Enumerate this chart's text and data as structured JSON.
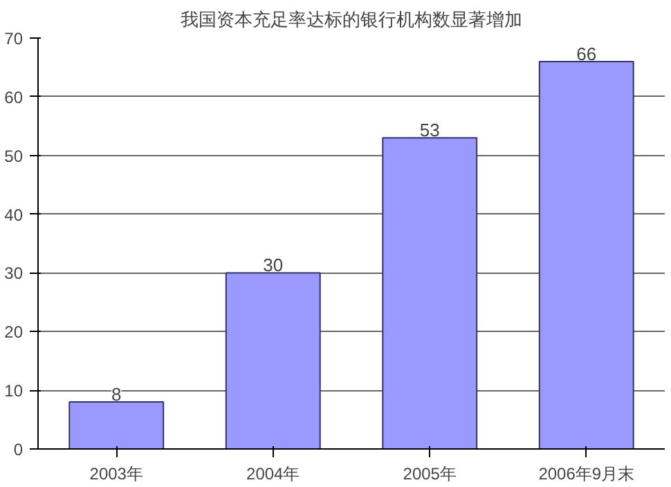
{
  "chart_data": {
    "type": "bar",
    "title": "我国资本充足率达标的银行机构数显著增加",
    "categories": [
      "2003年",
      "2004年",
      "2005年",
      "2006年9月末"
    ],
    "values": [
      8,
      30,
      53,
      66
    ],
    "color": "#9999ff",
    "ylim": [
      0,
      70
    ],
    "yticks": [
      0,
      10,
      20,
      30,
      40,
      50,
      60,
      70
    ],
    "grid": "y",
    "data_labels": true
  }
}
